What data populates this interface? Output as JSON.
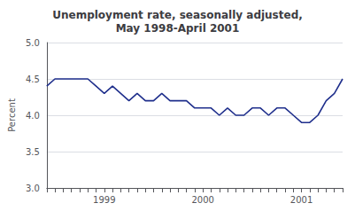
{
  "chart_data": {
    "type": "line",
    "title": "Unemployment rate, seasonally adjusted,\nMay 1998-April 2001",
    "ylabel": "Percent",
    "categories": [
      null,
      null,
      null,
      null,
      null,
      null,
      null,
      "1999",
      null,
      null,
      null,
      null,
      null,
      null,
      null,
      null,
      null,
      null,
      null,
      "2000",
      null,
      null,
      null,
      null,
      null,
      null,
      null,
      null,
      null,
      null,
      null,
      "2001",
      null,
      null,
      null,
      null,
      null
    ],
    "values": [
      4.4,
      4.5,
      4.5,
      4.5,
      4.5,
      4.5,
      4.4,
      4.3,
      4.4,
      4.3,
      4.2,
      4.3,
      4.2,
      4.2,
      4.3,
      4.2,
      4.2,
      4.2,
      4.1,
      4.1,
      4.1,
      4.0,
      4.1,
      4.0,
      4.0,
      4.1,
      4.1,
      4.0,
      4.1,
      4.1,
      4.0,
      3.9,
      3.9,
      4.0,
      4.2,
      4.3,
      4.5
    ],
    "color": "#1F2F8C",
    "ylim": [
      3.0,
      5.0
    ],
    "yticks": [
      {
        "value": 3.0,
        "label": "3.0"
      },
      3.5,
      {
        "value": 4.0,
        "label": "4.0"
      },
      4.5,
      {
        "value": 5.0,
        "label": "5.0"
      }
    ],
    "grid": true
  }
}
